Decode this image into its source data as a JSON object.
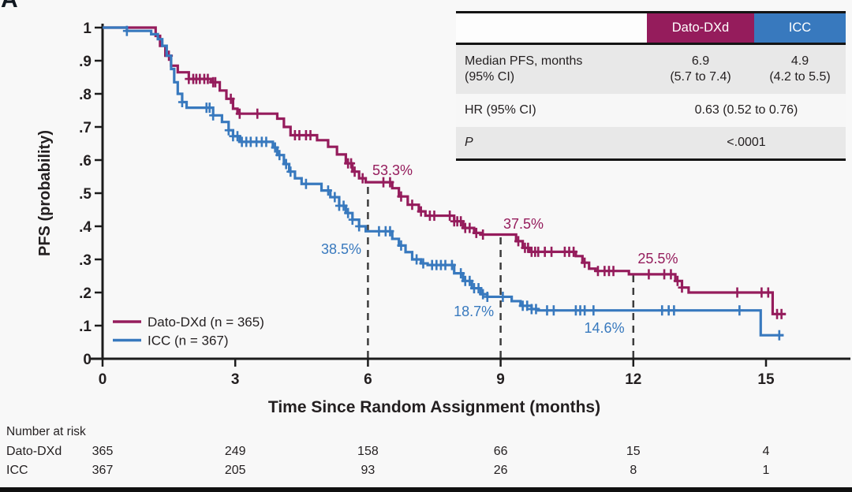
{
  "figure": {
    "panel_label": "A"
  },
  "colors": {
    "dato": "#951c5c",
    "icc": "#3879be",
    "text": "#231f20",
    "dash": "#3c3c3c",
    "axis": "#1c1c1c",
    "row_gray": "#e8e8e8",
    "bottom_bar": "#101010"
  },
  "legend": {
    "items": [
      {
        "label": "Dato-DXd (n = 365)",
        "color_key": "dato"
      },
      {
        "label": "ICC (n = 367)",
        "color_key": "icc"
      }
    ]
  },
  "stats_table": {
    "columns": [
      "",
      "Dato-DXd",
      "ICC"
    ],
    "rows": [
      {
        "label_line1": "Median PFS, months",
        "label_line2": "(95% CI)",
        "dato_line1": "6.9",
        "dato_line2": "(5.7 to 7.4)",
        "icc_line1": "4.9",
        "icc_line2": "(4.2 to 5.5)"
      },
      {
        "label": "HR (95% CI)",
        "value": "0.63 (0.52 to 0.76)"
      },
      {
        "label": "P",
        "value": "<.0001"
      }
    ]
  },
  "risk_table": {
    "title": "Number at risk",
    "times": [
      0,
      3,
      6,
      9,
      12,
      15
    ],
    "rows": [
      {
        "label": "Dato-DXd",
        "color_key": "dato",
        "values": [
          "365",
          "249",
          "158",
          "66",
          "15",
          "4"
        ]
      },
      {
        "label": "ICC",
        "color_key": "icc",
        "values": [
          "367",
          "205",
          "93",
          "26",
          "8",
          "1"
        ]
      }
    ]
  },
  "chart_data": {
    "type": "line",
    "subtype": "kaplan-meier-step",
    "title": "",
    "xlabel": "Time Since Random Assignment (months)",
    "ylabel": "PFS (probability)",
    "xlim": [
      0,
      15.8
    ],
    "ylim": [
      0,
      1
    ],
    "grid": false,
    "legend_position": "lower-left-inside",
    "xticks": [
      0,
      3,
      6,
      9,
      12,
      15
    ],
    "yticks": [
      {
        "v": 0,
        "label": "0"
      },
      {
        "v": 0.1,
        "label": ".1"
      },
      {
        "v": 0.2,
        "label": ".2"
      },
      {
        "v": 0.3,
        "label": ".3"
      },
      {
        "v": 0.4,
        "label": ".4"
      },
      {
        "v": 0.5,
        "label": ".5"
      },
      {
        "v": 0.6,
        "label": ".6"
      },
      {
        "v": 0.7,
        "label": ".7"
      },
      {
        "v": 0.8,
        "label": ".8"
      },
      {
        "v": 0.9,
        "label": ".9"
      },
      {
        "v": 1,
        "label": "1"
      }
    ],
    "dropline_months": [
      6,
      9,
      12
    ],
    "series": [
      {
        "name": "Dato-DXd",
        "n": 365,
        "color_key": "dato",
        "milestones": {
          "6mo": 0.533,
          "9mo": 0.375,
          "12mo": 0.255
        },
        "median_months": 6.9,
        "steps": [
          [
            0,
            1.0
          ],
          [
            1.2,
            0.975
          ],
          [
            1.3,
            0.945
          ],
          [
            1.42,
            0.915
          ],
          [
            1.55,
            0.885
          ],
          [
            1.7,
            0.865
          ],
          [
            1.95,
            0.845
          ],
          [
            2.45,
            0.835
          ],
          [
            2.65,
            0.81
          ],
          [
            2.8,
            0.785
          ],
          [
            2.95,
            0.755
          ],
          [
            3.05,
            0.74
          ],
          [
            3.95,
            0.725
          ],
          [
            4.1,
            0.7
          ],
          [
            4.25,
            0.675
          ],
          [
            4.85,
            0.66
          ],
          [
            5.1,
            0.64
          ],
          [
            5.3,
            0.617
          ],
          [
            5.5,
            0.59
          ],
          [
            5.65,
            0.565
          ],
          [
            5.8,
            0.545
          ],
          [
            5.95,
            0.533
          ],
          [
            6.55,
            0.515
          ],
          [
            6.7,
            0.49
          ],
          [
            6.9,
            0.465
          ],
          [
            7.15,
            0.445
          ],
          [
            7.3,
            0.432
          ],
          [
            7.95,
            0.415
          ],
          [
            8.15,
            0.395
          ],
          [
            8.4,
            0.38
          ],
          [
            8.55,
            0.375
          ],
          [
            9.35,
            0.355
          ],
          [
            9.5,
            0.335
          ],
          [
            9.65,
            0.323
          ],
          [
            10.7,
            0.31
          ],
          [
            10.85,
            0.29
          ],
          [
            11.0,
            0.272
          ],
          [
            11.15,
            0.265
          ],
          [
            11.9,
            0.255
          ],
          [
            12.95,
            0.235
          ],
          [
            13.1,
            0.215
          ],
          [
            13.25,
            0.2
          ],
          [
            15.15,
            0.135
          ]
        ],
        "end": 15.45,
        "censors": [
          1.5,
          1.95,
          2.05,
          2.12,
          2.2,
          2.3,
          2.38,
          2.5,
          2.55,
          2.9,
          3.1,
          3.5,
          4.35,
          4.45,
          4.6,
          4.7,
          5.55,
          5.62,
          5.7,
          5.88,
          6.35,
          6.5,
          6.75,
          7.0,
          7.2,
          7.4,
          7.5,
          7.85,
          7.95,
          8.02,
          8.1,
          8.2,
          8.3,
          8.45,
          8.6,
          9.4,
          9.55,
          9.62,
          9.7,
          9.78,
          9.85,
          10.0,
          10.15,
          10.45,
          10.55,
          10.65,
          10.9,
          11.2,
          11.35,
          11.45,
          11.55,
          12.35,
          12.7,
          12.85,
          13.0,
          13.1,
          14.35,
          14.9,
          15.05,
          15.25,
          15.35
        ]
      },
      {
        "name": "ICC",
        "n": 367,
        "color_key": "icc",
        "milestones": {
          "6mo": 0.385,
          "9mo": 0.187,
          "12mo": 0.146
        },
        "median_months": 4.9,
        "steps": [
          [
            0,
            1.0
          ],
          [
            0.55,
            0.99
          ],
          [
            1.1,
            0.98
          ],
          [
            1.25,
            0.965
          ],
          [
            1.35,
            0.945
          ],
          [
            1.45,
            0.915
          ],
          [
            1.55,
            0.875
          ],
          [
            1.62,
            0.835
          ],
          [
            1.7,
            0.8
          ],
          [
            1.8,
            0.775
          ],
          [
            1.9,
            0.758
          ],
          [
            2.5,
            0.735
          ],
          [
            2.7,
            0.715
          ],
          [
            2.85,
            0.69
          ],
          [
            2.95,
            0.672
          ],
          [
            3.1,
            0.655
          ],
          [
            3.85,
            0.638
          ],
          [
            3.95,
            0.615
          ],
          [
            4.1,
            0.588
          ],
          [
            4.22,
            0.565
          ],
          [
            4.35,
            0.545
          ],
          [
            4.5,
            0.528
          ],
          [
            4.95,
            0.508
          ],
          [
            5.15,
            0.488
          ],
          [
            5.35,
            0.462
          ],
          [
            5.5,
            0.44
          ],
          [
            5.65,
            0.42
          ],
          [
            5.8,
            0.4
          ],
          [
            5.95,
            0.385
          ],
          [
            6.55,
            0.362
          ],
          [
            6.7,
            0.342
          ],
          [
            6.85,
            0.322
          ],
          [
            7.0,
            0.3
          ],
          [
            7.2,
            0.288
          ],
          [
            7.35,
            0.283
          ],
          [
            7.95,
            0.258
          ],
          [
            8.15,
            0.235
          ],
          [
            8.35,
            0.213
          ],
          [
            8.55,
            0.195
          ],
          [
            8.7,
            0.187
          ],
          [
            9.25,
            0.174
          ],
          [
            9.45,
            0.16
          ],
          [
            9.7,
            0.15
          ],
          [
            9.85,
            0.146
          ],
          [
            14.88,
            0.071
          ]
        ],
        "end": 15.4,
        "censors": [
          0.55,
          1.8,
          2.35,
          2.42,
          2.5,
          2.85,
          2.95,
          3.05,
          3.15,
          3.25,
          3.35,
          3.48,
          3.6,
          3.7,
          3.9,
          4.0,
          4.15,
          4.25,
          4.6,
          5.1,
          5.25,
          5.35,
          5.45,
          5.55,
          5.65,
          5.8,
          6.25,
          6.4,
          6.5,
          6.75,
          7.1,
          7.25,
          7.45,
          7.55,
          7.65,
          7.75,
          7.9,
          8.1,
          8.2,
          8.3,
          8.4,
          8.5,
          8.6,
          8.7,
          9.05,
          9.5,
          9.6,
          9.7,
          9.8,
          10.05,
          10.2,
          10.7,
          10.8,
          10.9,
          11.1,
          12.65,
          12.8,
          12.92,
          14.4,
          15.3
        ]
      }
    ],
    "annotations": [
      {
        "text": "53.3%",
        "color_key": "dato",
        "x": 6.1,
        "v": 0.555,
        "anchor": "start"
      },
      {
        "text": "38.5%",
        "color_key": "icc",
        "x": 5.85,
        "v": 0.317,
        "anchor": "end"
      },
      {
        "text": "37.5%",
        "color_key": "dato",
        "x": 9.06,
        "v": 0.393,
        "anchor": "start"
      },
      {
        "text": "18.7%",
        "color_key": "icc",
        "x": 8.85,
        "v": 0.128,
        "anchor": "end"
      },
      {
        "text": "25.5%",
        "color_key": "dato",
        "x": 12.1,
        "v": 0.288,
        "anchor": "start"
      },
      {
        "text": "14.6%",
        "color_key": "icc",
        "x": 11.8,
        "v": 0.079,
        "anchor": "end"
      }
    ]
  }
}
